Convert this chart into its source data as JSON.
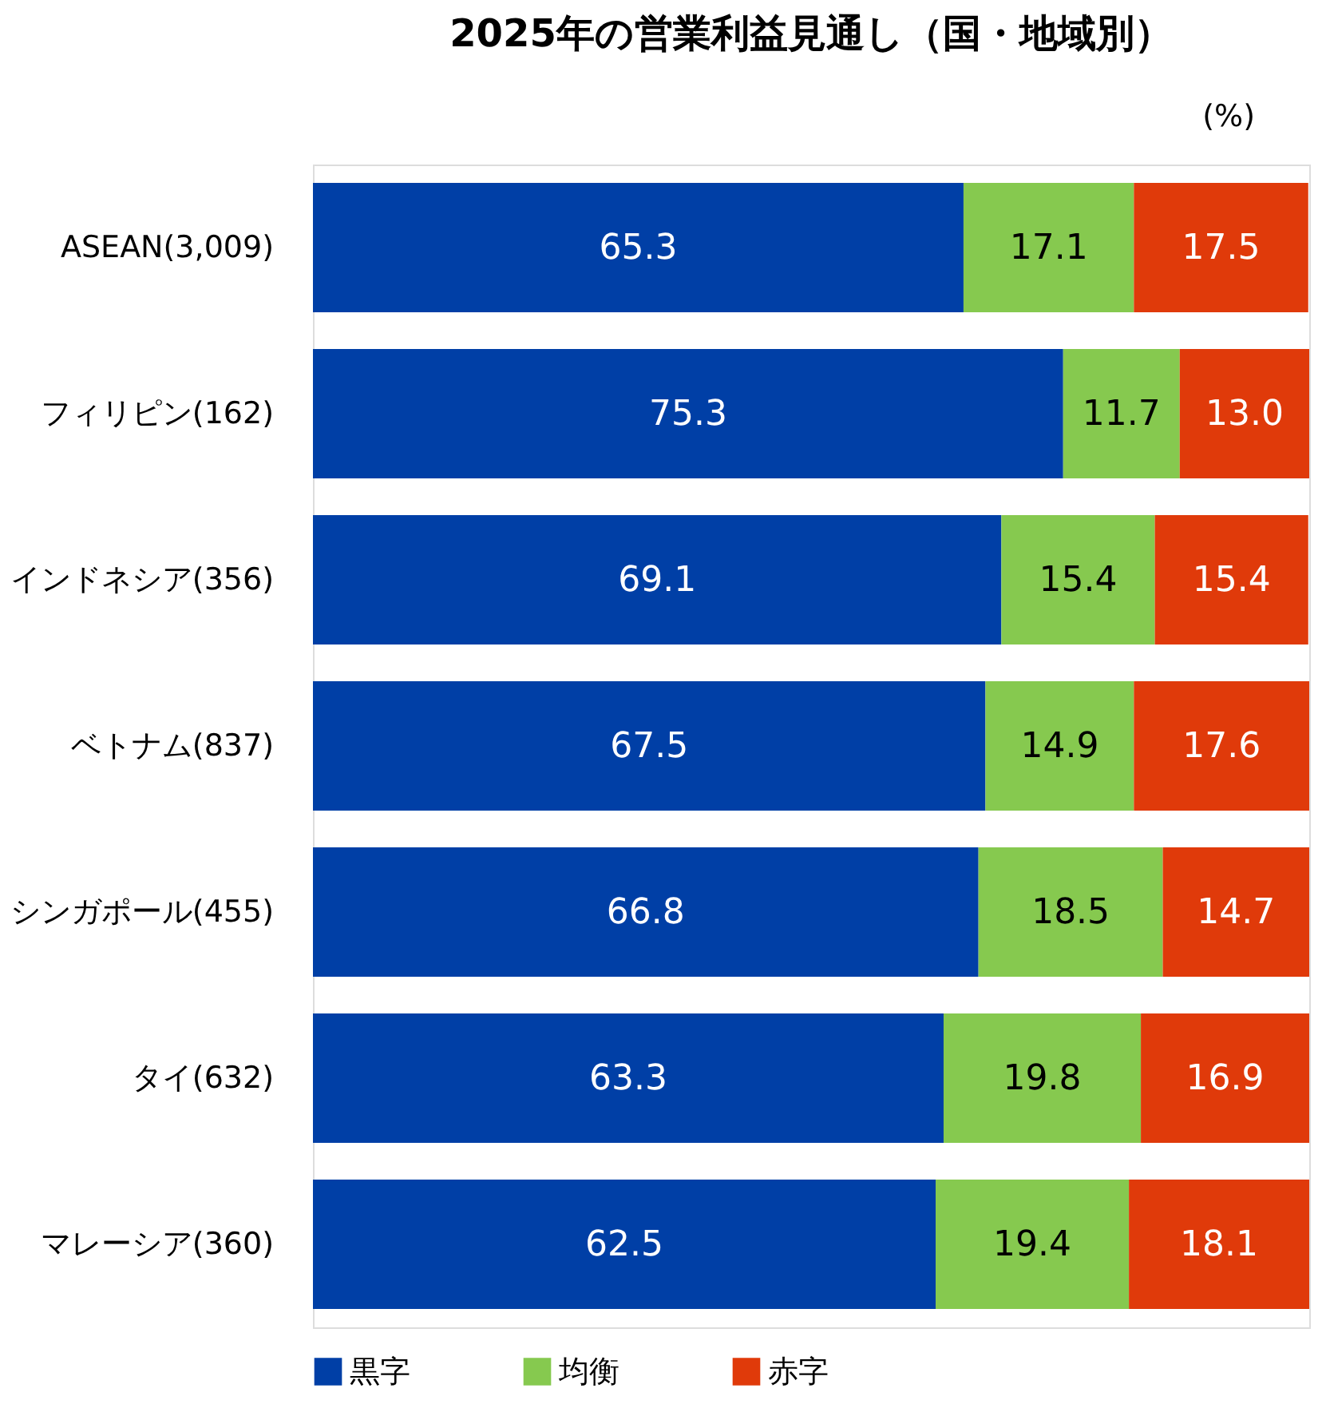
{
  "chart_data": {
    "type": "bar",
    "orientation": "horizontal",
    "stacked": true,
    "title": "2025年の営業利益見通し（国・地域別）",
    "annotations": [
      "(%)"
    ],
    "categories": [
      "ASEAN(3,009)",
      "フィリピン(162)",
      "インドネシア(356)",
      "ベトナム(837)",
      "シンガポール(455)",
      "タイ(632)",
      "マレーシア(360)"
    ],
    "series": [
      {
        "name": "黒字",
        "color": "#003fa6",
        "values": [
          65.3,
          75.3,
          69.1,
          67.5,
          66.8,
          63.3,
          62.5
        ]
      },
      {
        "name": "均衡",
        "color": "#86c94f",
        "values": [
          17.1,
          11.7,
          15.4,
          14.9,
          18.5,
          19.8,
          19.4
        ]
      },
      {
        "name": "赤字",
        "color": "#e03a0a",
        "values": [
          17.5,
          13.0,
          15.4,
          17.6,
          14.7,
          16.9,
          18.1
        ],
        "value_labels": [
          "17.5",
          "13.0",
          "15.4",
          "17.6",
          "14.7",
          "16.9",
          "18.1"
        ]
      }
    ],
    "xlim": [
      0,
      100
    ],
    "data_labels": true,
    "legend": "bottom",
    "grid": false,
    "tick_labels": "y"
  }
}
